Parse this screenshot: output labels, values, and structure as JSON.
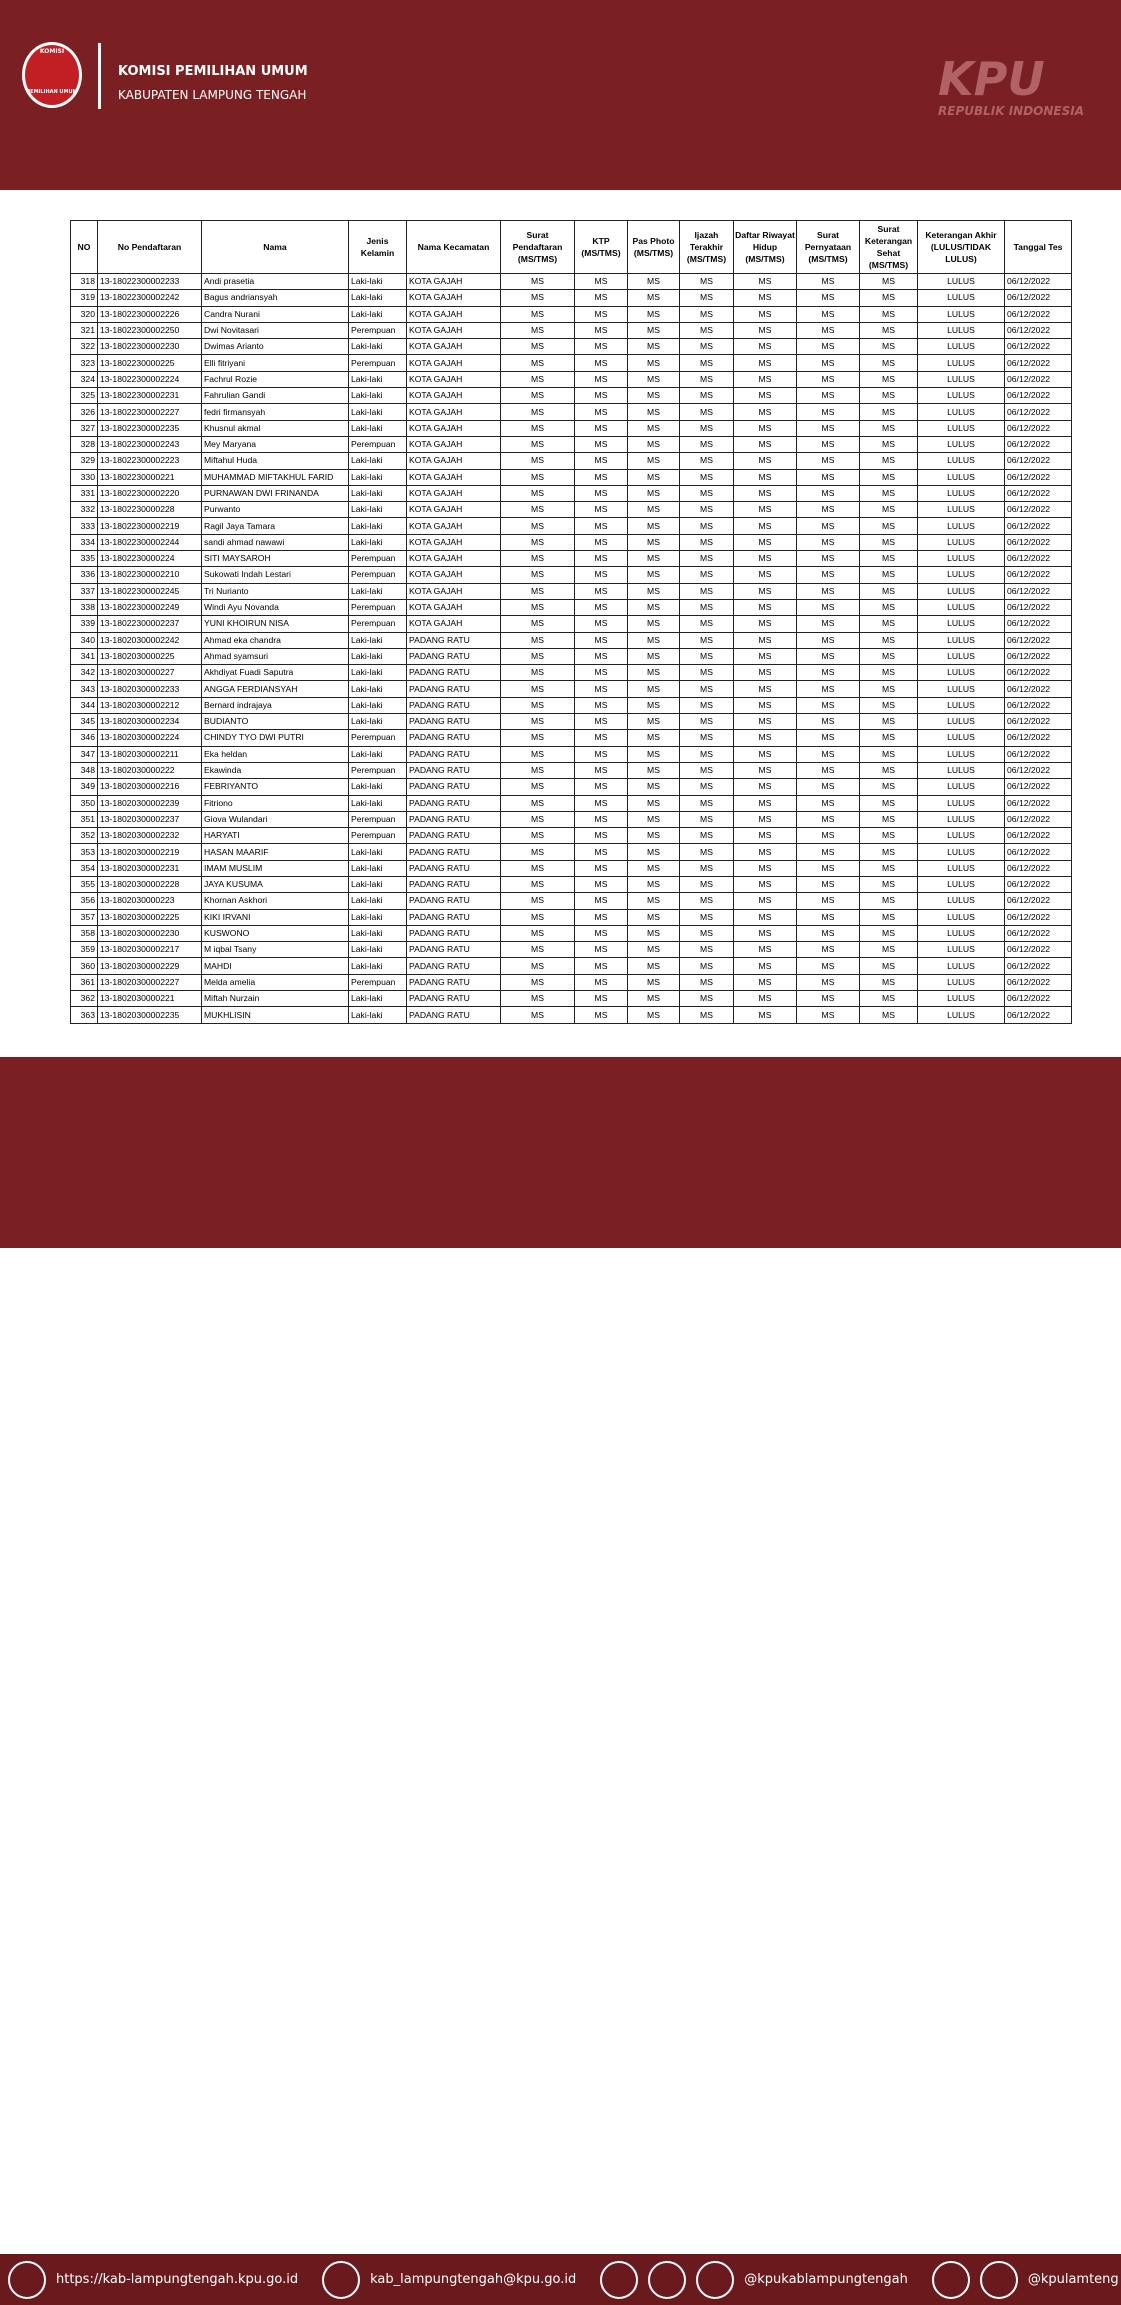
{
  "header": {
    "logo_top": "KOMISI",
    "logo_bottom": "PEMILIHAN UMUM",
    "title": "KOMISI PEMILIHAN UMUM",
    "subtitle": "KABUPATEN LAMPUNG TENGAH",
    "brand": "KPU",
    "brand_sub": "REPUBLIK INDONESIA"
  },
  "table": {
    "columns": [
      "NO",
      "No Pendaftaran",
      "Nama",
      "Jenis Kelamin",
      "Nama Kecamatan",
      "Surat Pendaftaran (MS/TMS)",
      "KTP (MS/TMS)",
      "Pas Photo (MS/TMS)",
      "Ijazah Terakhir (MS/TMS)",
      "Daftar Riwayat Hidup (MS/TMS)",
      "Surat Pernyataan (MS/TMS)",
      "Surat Keterangan Sehat (MS/TMS)",
      "Keterangan Akhir (LULUS/TIDAK LULUS)",
      "Tanggal Tes"
    ],
    "rows": [
      [
        318,
        "13-18022300002233",
        "Andi prasetia",
        "Laki-laki",
        "KOTA GAJAH",
        "MS",
        "MS",
        "MS",
        "MS",
        "MS",
        "MS",
        "MS",
        "LULUS",
        "06/12/2022"
      ],
      [
        319,
        "13-18022300002242",
        "Bagus andriansyah",
        "Laki-laki",
        "KOTA GAJAH",
        "MS",
        "MS",
        "MS",
        "MS",
        "MS",
        "MS",
        "MS",
        "LULUS",
        "06/12/2022"
      ],
      [
        320,
        "13-18022300002226",
        "Candra Nurani",
        "Laki-laki",
        "KOTA GAJAH",
        "MS",
        "MS",
        "MS",
        "MS",
        "MS",
        "MS",
        "MS",
        "LULUS",
        "06/12/2022"
      ],
      [
        321,
        "13-18022300002250",
        "Dwi Novitasari",
        "Perempuan",
        "KOTA GAJAH",
        "MS",
        "MS",
        "MS",
        "MS",
        "MS",
        "MS",
        "MS",
        "LULUS",
        "06/12/2022"
      ],
      [
        322,
        "13-18022300002230",
        "Dwimas Arianto",
        "Laki-laki",
        "KOTA GAJAH",
        "MS",
        "MS",
        "MS",
        "MS",
        "MS",
        "MS",
        "MS",
        "LULUS",
        "06/12/2022"
      ],
      [
        323,
        "13-1802230000225",
        "Elli fitriyani",
        "Perempuan",
        "KOTA GAJAH",
        "MS",
        "MS",
        "MS",
        "MS",
        "MS",
        "MS",
        "MS",
        "LULUS",
        "06/12/2022"
      ],
      [
        324,
        "13-18022300002224",
        "Fachrul Rozie",
        "Laki-laki",
        "KOTA GAJAH",
        "MS",
        "MS",
        "MS",
        "MS",
        "MS",
        "MS",
        "MS",
        "LULUS",
        "06/12/2022"
      ],
      [
        325,
        "13-18022300002231",
        "Fahrulian Gandi",
        "Laki-laki",
        "KOTA GAJAH",
        "MS",
        "MS",
        "MS",
        "MS",
        "MS",
        "MS",
        "MS",
        "LULUS",
        "06/12/2022"
      ],
      [
        326,
        "13-18022300002227",
        "fedri firmansyah",
        "Laki-laki",
        "KOTA GAJAH",
        "MS",
        "MS",
        "MS",
        "MS",
        "MS",
        "MS",
        "MS",
        "LULUS",
        "06/12/2022"
      ],
      [
        327,
        "13-18022300002235",
        "Khusnul akmal",
        "Laki-laki",
        "KOTA GAJAH",
        "MS",
        "MS",
        "MS",
        "MS",
        "MS",
        "MS",
        "MS",
        "LULUS",
        "06/12/2022"
      ],
      [
        328,
        "13-18022300002243",
        "Mey Maryana",
        "Perempuan",
        "KOTA GAJAH",
        "MS",
        "MS",
        "MS",
        "MS",
        "MS",
        "MS",
        "MS",
        "LULUS",
        "06/12/2022"
      ],
      [
        329,
        "13-18022300002223",
        "Miftahul Huda",
        "Laki-laki",
        "KOTA GAJAH",
        "MS",
        "MS",
        "MS",
        "MS",
        "MS",
        "MS",
        "MS",
        "LULUS",
        "06/12/2022"
      ],
      [
        330,
        "13-1802230000221",
        "MUHAMMAD MIFTAKHUL FARID",
        "Laki-laki",
        "KOTA GAJAH",
        "MS",
        "MS",
        "MS",
        "MS",
        "MS",
        "MS",
        "MS",
        "LULUS",
        "06/12/2022"
      ],
      [
        331,
        "13-18022300002220",
        "PURNAWAN DWI FRINANDA",
        "Laki-laki",
        "KOTA GAJAH",
        "MS",
        "MS",
        "MS",
        "MS",
        "MS",
        "MS",
        "MS",
        "LULUS",
        "06/12/2022"
      ],
      [
        332,
        "13-1802230000228",
        "Purwanto",
        "Laki-laki",
        "KOTA GAJAH",
        "MS",
        "MS",
        "MS",
        "MS",
        "MS",
        "MS",
        "MS",
        "LULUS",
        "06/12/2022"
      ],
      [
        333,
        "13-18022300002219",
        "Ragil Jaya Tamara",
        "Laki-laki",
        "KOTA GAJAH",
        "MS",
        "MS",
        "MS",
        "MS",
        "MS",
        "MS",
        "MS",
        "LULUS",
        "06/12/2022"
      ],
      [
        334,
        "13-18022300002244",
        "sandi ahmad nawawi",
        "Laki-laki",
        "KOTA GAJAH",
        "MS",
        "MS",
        "MS",
        "MS",
        "MS",
        "MS",
        "MS",
        "LULUS",
        "06/12/2022"
      ],
      [
        335,
        "13-1802230000224",
        "SITI MAYSAROH",
        "Perempuan",
        "KOTA GAJAH",
        "MS",
        "MS",
        "MS",
        "MS",
        "MS",
        "MS",
        "MS",
        "LULUS",
        "06/12/2022"
      ],
      [
        336,
        "13-18022300002210",
        "Sukowati Indah Lestari",
        "Perempuan",
        "KOTA GAJAH",
        "MS",
        "MS",
        "MS",
        "MS",
        "MS",
        "MS",
        "MS",
        "LULUS",
        "06/12/2022"
      ],
      [
        337,
        "13-18022300002245",
        "Tri Nurianto",
        "Laki-laki",
        "KOTA GAJAH",
        "MS",
        "MS",
        "MS",
        "MS",
        "MS",
        "MS",
        "MS",
        "LULUS",
        "06/12/2022"
      ],
      [
        338,
        "13-18022300002249",
        "Windi Ayu Novanda",
        "Perempuan",
        "KOTA GAJAH",
        "MS",
        "MS",
        "MS",
        "MS",
        "MS",
        "MS",
        "MS",
        "LULUS",
        "06/12/2022"
      ],
      [
        339,
        "13-18022300002237",
        "YUNI KHOIRUN NISA",
        "Perempuan",
        "KOTA GAJAH",
        "MS",
        "MS",
        "MS",
        "MS",
        "MS",
        "MS",
        "MS",
        "LULUS",
        "06/12/2022"
      ],
      [
        340,
        "13-18020300002242",
        "Ahmad eka chandra",
        "Laki-laki",
        "PADANG RATU",
        "MS",
        "MS",
        "MS",
        "MS",
        "MS",
        "MS",
        "MS",
        "LULUS",
        "06/12/2022"
      ],
      [
        341,
        "13-1802030000225",
        "Ahmad syamsuri",
        "Laki-laki",
        "PADANG RATU",
        "MS",
        "MS",
        "MS",
        "MS",
        "MS",
        "MS",
        "MS",
        "LULUS",
        "06/12/2022"
      ],
      [
        342,
        "13-1802030000227",
        "Akhdiyat Fuadi Saputra",
        "Laki-laki",
        "PADANG RATU",
        "MS",
        "MS",
        "MS",
        "MS",
        "MS",
        "MS",
        "MS",
        "LULUS",
        "06/12/2022"
      ],
      [
        343,
        "13-18020300002233",
        "ANGGA FERDIANSYAH",
        "Laki-laki",
        "PADANG RATU",
        "MS",
        "MS",
        "MS",
        "MS",
        "MS",
        "MS",
        "MS",
        "LULUS",
        "06/12/2022"
      ],
      [
        344,
        "13-18020300002212",
        "Bernard indrajaya",
        "Laki-laki",
        "PADANG RATU",
        "MS",
        "MS",
        "MS",
        "MS",
        "MS",
        "MS",
        "MS",
        "LULUS",
        "06/12/2022"
      ],
      [
        345,
        "13-18020300002234",
        "BUDIANTO",
        "Laki-laki",
        "PADANG RATU",
        "MS",
        "MS",
        "MS",
        "MS",
        "MS",
        "MS",
        "MS",
        "LULUS",
        "06/12/2022"
      ],
      [
        346,
        "13-18020300002224",
        "CHINDY TYO DWI PUTRI",
        "Perempuan",
        "PADANG RATU",
        "MS",
        "MS",
        "MS",
        "MS",
        "MS",
        "MS",
        "MS",
        "LULUS",
        "06/12/2022"
      ],
      [
        347,
        "13-18020300002211",
        "Eka heldan",
        "Laki-laki",
        "PADANG RATU",
        "MS",
        "MS",
        "MS",
        "MS",
        "MS",
        "MS",
        "MS",
        "LULUS",
        "06/12/2022"
      ],
      [
        348,
        "13-1802030000222",
        "Ekawinda",
        "Perempuan",
        "PADANG RATU",
        "MS",
        "MS",
        "MS",
        "MS",
        "MS",
        "MS",
        "MS",
        "LULUS",
        "06/12/2022"
      ],
      [
        349,
        "13-18020300002216",
        "FEBRIYANTO",
        "Laki-laki",
        "PADANG RATU",
        "MS",
        "MS",
        "MS",
        "MS",
        "MS",
        "MS",
        "MS",
        "LULUS",
        "06/12/2022"
      ],
      [
        350,
        "13-18020300002239",
        "Fitriono",
        "Laki-laki",
        "PADANG RATU",
        "MS",
        "MS",
        "MS",
        "MS",
        "MS",
        "MS",
        "MS",
        "LULUS",
        "06/12/2022"
      ],
      [
        351,
        "13-18020300002237",
        "Giova Wulandari",
        "Perempuan",
        "PADANG RATU",
        "MS",
        "MS",
        "MS",
        "MS",
        "MS",
        "MS",
        "MS",
        "LULUS",
        "06/12/2022"
      ],
      [
        352,
        "13-18020300002232",
        "HARYATI",
        "Perempuan",
        "PADANG RATU",
        "MS",
        "MS",
        "MS",
        "MS",
        "MS",
        "MS",
        "MS",
        "LULUS",
        "06/12/2022"
      ],
      [
        353,
        "13-18020300002219",
        "HASAN MAARIF",
        "Laki-laki",
        "PADANG RATU",
        "MS",
        "MS",
        "MS",
        "MS",
        "MS",
        "MS",
        "MS",
        "LULUS",
        "06/12/2022"
      ],
      [
        354,
        "13-18020300002231",
        "IMAM MUSLIM",
        "Laki-laki",
        "PADANG RATU",
        "MS",
        "MS",
        "MS",
        "MS",
        "MS",
        "MS",
        "MS",
        "LULUS",
        "06/12/2022"
      ],
      [
        355,
        "13-18020300002228",
        "JAYA KUSUMA",
        "Laki-laki",
        "PADANG RATU",
        "MS",
        "MS",
        "MS",
        "MS",
        "MS",
        "MS",
        "MS",
        "LULUS",
        "06/12/2022"
      ],
      [
        356,
        "13-1802030000223",
        "Khornan Askhori",
        "Laki-laki",
        "PADANG RATU",
        "MS",
        "MS",
        "MS",
        "MS",
        "MS",
        "MS",
        "MS",
        "LULUS",
        "06/12/2022"
      ],
      [
        357,
        "13-18020300002225",
        "KIKI IRVANI",
        "Laki-laki",
        "PADANG RATU",
        "MS",
        "MS",
        "MS",
        "MS",
        "MS",
        "MS",
        "MS",
        "LULUS",
        "06/12/2022"
      ],
      [
        358,
        "13-18020300002230",
        "KUSWONO",
        "Laki-laki",
        "PADANG RATU",
        "MS",
        "MS",
        "MS",
        "MS",
        "MS",
        "MS",
        "MS",
        "LULUS",
        "06/12/2022"
      ],
      [
        359,
        "13-18020300002217",
        "M iqbal Tsany",
        "Laki-laki",
        "PADANG RATU",
        "MS",
        "MS",
        "MS",
        "MS",
        "MS",
        "MS",
        "MS",
        "LULUS",
        "06/12/2022"
      ],
      [
        360,
        "13-18020300002229",
        "MAHDI",
        "Laki-laki",
        "PADANG RATU",
        "MS",
        "MS",
        "MS",
        "MS",
        "MS",
        "MS",
        "MS",
        "LULUS",
        "06/12/2022"
      ],
      [
        361,
        "13-18020300002227",
        "Melda amelia",
        "Perempuan",
        "PADANG RATU",
        "MS",
        "MS",
        "MS",
        "MS",
        "MS",
        "MS",
        "MS",
        "LULUS",
        "06/12/2022"
      ],
      [
        362,
        "13-1802030000221",
        "Miftah Nurzain",
        "Laki-laki",
        "PADANG RATU",
        "MS",
        "MS",
        "MS",
        "MS",
        "MS",
        "MS",
        "MS",
        "LULUS",
        "06/12/2022"
      ],
      [
        363,
        "13-18020300002235",
        "MUKHLISIN",
        "Laki-laki",
        "PADANG RATU",
        "MS",
        "MS",
        "MS",
        "MS",
        "MS",
        "MS",
        "MS",
        "LULUS",
        "06/12/2022"
      ]
    ]
  },
  "footer": {
    "website": "https://kab-lampungtengah.kpu.go.id",
    "email": "kab_lampungtengah@kpu.go.id",
    "social": "@kpukablampungtengah",
    "social2": "@kpulamteng"
  }
}
